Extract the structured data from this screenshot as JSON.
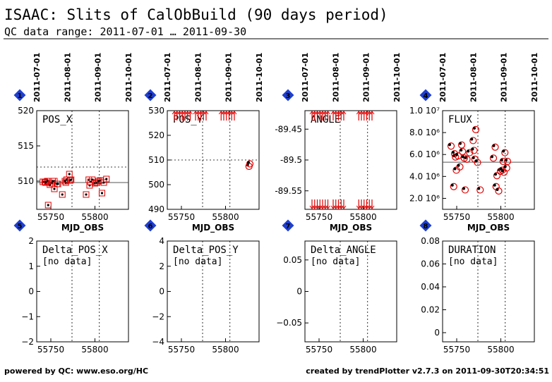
{
  "header": {
    "title": "ISAAC: Slits of CalObBuild (90 days period)",
    "subtitle": "QC data range: 2011-07-01 … 2011-09-30"
  },
  "footer": {
    "left": "powered by QC: www.eso.org/HC",
    "right": "created by trendPlotter v2.7.3 on 2011-09-30T20:34:51"
  },
  "date_ticks": [
    "2011-07-01",
    "2011-08-01",
    "2011-09-01",
    "2011-10-01"
  ],
  "colors": {
    "measured": "#e00000",
    "reference": "#000000",
    "marker_bg": "#1f3fd0"
  },
  "chart_data": [
    {
      "id": 1,
      "type": "scatter",
      "title": "POS_X",
      "xlabel": "MJD_OBS",
      "xlim": [
        55734,
        55838
      ],
      "ylim": [
        506,
        520
      ],
      "yticks": [
        "520",
        "515",
        "510"
      ],
      "xticks": [
        "55750",
        "55800"
      ],
      "ref_line": 509.8,
      "threshold": 512,
      "series": [
        {
          "values": [
            [
              55741,
              509.9
            ],
            [
              55743,
              509.9
            ],
            [
              55744,
              509.8
            ],
            [
              55746,
              510.0
            ],
            [
              55747,
              506.6
            ],
            [
              55749,
              509.5
            ],
            [
              55751,
              509.7
            ],
            [
              55752,
              510.0
            ],
            [
              55754,
              508.9
            ],
            [
              55754,
              510.0
            ],
            [
              55757,
              509.6
            ],
            [
              55758,
              509.6
            ],
            [
              55763,
              508.1
            ],
            [
              55766,
              510.0
            ],
            [
              55767,
              509.8
            ],
            [
              55768,
              510.2
            ],
            [
              55771,
              511.0
            ],
            [
              55772,
              510.1
            ],
            [
              55773,
              510.2
            ],
            [
              55790,
              508.1
            ],
            [
              55793,
              510.2
            ],
            [
              55794,
              509.4
            ],
            [
              55795,
              509.9
            ],
            [
              55797,
              510.2
            ],
            [
              55800,
              509.7
            ],
            [
              55802,
              509.8
            ],
            [
              55804,
              510.0
            ],
            [
              55806,
              510.1
            ],
            [
              55808,
              508.3
            ],
            [
              55810,
              509.8
            ],
            [
              55813,
              510.3
            ]
          ]
        }
      ]
    },
    {
      "id": 2,
      "type": "scatter",
      "title": "POS_Y",
      "xlabel": "MJD_OBS",
      "xlim": [
        55734,
        55838
      ],
      "ylim": [
        490,
        530
      ],
      "yticks": [
        "530",
        "520",
        "510",
        "500",
        "490"
      ],
      "xticks": [
        "55750",
        "55800"
      ],
      "threshold": 510,
      "series": [
        {
          "values": [
            [
              55825,
              508
            ],
            [
              55826,
              509
            ]
          ]
        }
      ]
    },
    {
      "id": 3,
      "type": "scatter",
      "title": "ANGLE",
      "xlabel": "MJD_OBS",
      "xlim": [
        55734,
        55838
      ],
      "ylim": [
        -89.58,
        -89.42
      ],
      "yticks": [
        "-89.45",
        "-89.5",
        "-89.55"
      ],
      "xticks": [
        "55750",
        "55800"
      ],
      "series": []
    },
    {
      "id": 4,
      "type": "scatter",
      "title": "FLUX",
      "xlabel": "MJD_OBS",
      "xlim": [
        55734,
        55838
      ],
      "ylim": [
        1000000,
        10000000
      ],
      "yticks": [
        "8.0 10⁶",
        "6.0 10⁶",
        "4.0 10⁶",
        "2.0 10⁶"
      ],
      "ytick_top": "1.0 10⁷",
      "xticks": [
        "55750",
        "55800"
      ],
      "ref_line": 5300000,
      "series": [
        {
          "name": "",
          "values": [
            [
              55742,
              6900000
            ],
            [
              55745,
              3200000
            ],
            [
              55746,
              6200000
            ],
            [
              55747,
              5900000
            ],
            [
              55748,
              4700000
            ],
            [
              55750,
              6000000
            ],
            [
              55752,
              5000000
            ],
            [
              55754,
              7000000
            ],
            [
              55755,
              6400000
            ],
            [
              55757,
              5800000
            ],
            [
              55758,
              2900000
            ],
            [
              55760,
              5700000
            ],
            [
              55763,
              6300000
            ],
            [
              55767,
              7400000
            ],
            [
              55768,
              6500000
            ],
            [
              55769,
              5700000
            ],
            [
              55770,
              8400000
            ],
            [
              55772,
              5400000
            ],
            [
              55775,
              2900000
            ],
            [
              55790,
              5800000
            ],
            [
              55792,
              6800000
            ],
            [
              55793,
              3200000
            ],
            [
              55794,
              4200000
            ],
            [
              55796,
              2800000
            ],
            [
              55798,
              4600000
            ],
            [
              55800,
              4700000
            ],
            [
              55801,
              5500000
            ],
            [
              55802,
              4500000
            ],
            [
              55803,
              6300000
            ],
            [
              55805,
              4900000
            ],
            [
              55806,
              5500000
            ]
          ]
        }
      ]
    },
    {
      "id": 5,
      "type": "scatter",
      "title": "Delta_POS_X",
      "note": "[no data]",
      "xlabel": "",
      "xlim": [
        55734,
        55838
      ],
      "ylim": [
        -2,
        2
      ],
      "yticks": [
        "2",
        "1",
        "0",
        "−1",
        "−2"
      ],
      "xticks": [
        "55750",
        "55800"
      ],
      "series": []
    },
    {
      "id": 6,
      "type": "scatter",
      "title": "Delta_POS_Y",
      "note": "[no data]",
      "xlabel": "",
      "xlim": [
        55734,
        55838
      ],
      "ylim": [
        -4,
        4
      ],
      "yticks": [
        "4",
        "2",
        "0",
        "−2",
        "−4"
      ],
      "xticks": [
        "55750",
        "55800"
      ],
      "series": []
    },
    {
      "id": 7,
      "type": "scatter",
      "title": "Delta_ANGLE",
      "note": "[no data]",
      "xlabel": "",
      "xlim": [
        55734,
        55838
      ],
      "ylim": [
        -0.08,
        0.08
      ],
      "yticks": [
        "0.05",
        "0",
        "−0.05"
      ],
      "xticks": [
        "55750",
        "55800"
      ],
      "series": []
    },
    {
      "id": 8,
      "type": "scatter",
      "title": "DURATION",
      "note": "[no data]",
      "xlabel": "",
      "xlim": [
        55734,
        55838
      ],
      "ylim": [
        -0.008,
        0.08
      ],
      "yticks": [
        "0.08",
        "0.06",
        "0.04",
        "0.02",
        "0"
      ],
      "xticks": [
        "55750",
        "55800"
      ],
      "series": []
    }
  ]
}
